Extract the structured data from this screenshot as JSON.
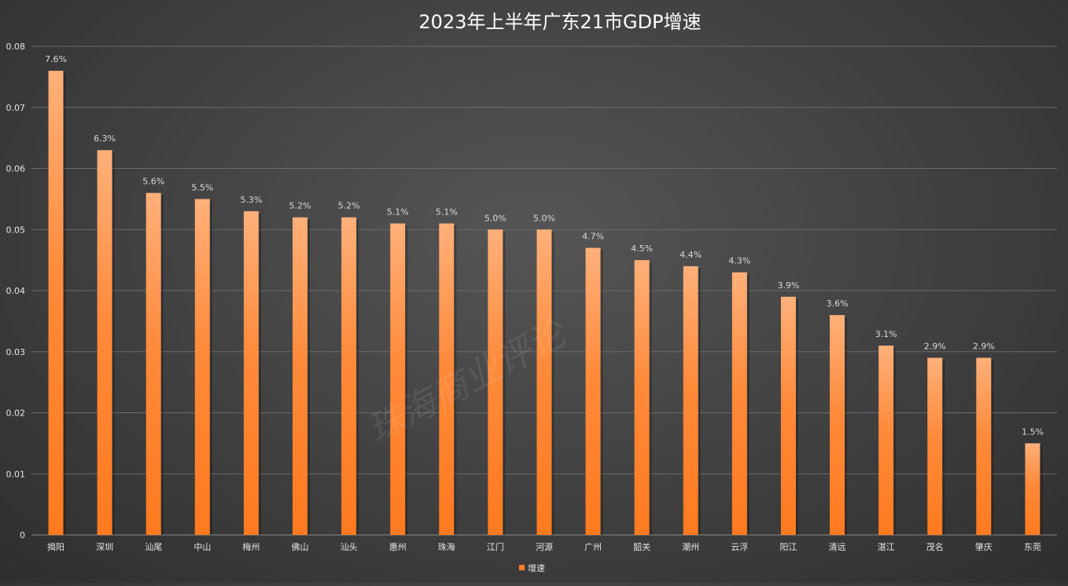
{
  "chart_data": {
    "type": "bar",
    "title": "2023年上半年广东21市GDP增速",
    "categories": [
      "揭阳",
      "深圳",
      "汕尾",
      "中山",
      "梅州",
      "佛山",
      "汕头",
      "惠州",
      "珠海",
      "江门",
      "河源",
      "广州",
      "韶关",
      "潮州",
      "云浮",
      "阳江",
      "清远",
      "湛江",
      "茂名",
      "肇庆",
      "东莞"
    ],
    "series": [
      {
        "name": "增速",
        "values": [
          0.076,
          0.063,
          0.056,
          0.055,
          0.053,
          0.052,
          0.052,
          0.051,
          0.051,
          0.05,
          0.05,
          0.047,
          0.045,
          0.044,
          0.043,
          0.039,
          0.036,
          0.031,
          0.029,
          0.029,
          0.015
        ],
        "data_labels": [
          "7.6%",
          "6.3%",
          "5.6%",
          "5.5%",
          "5.3%",
          "5.2%",
          "5.2%",
          "5.1%",
          "5.1%",
          "5.0%",
          "5.0%",
          "4.7%",
          "4.5%",
          "4.4%",
          "4.3%",
          "3.9%",
          "3.6%",
          "3.1%",
          "2.9%",
          "2.9%",
          "1.5%"
        ]
      }
    ],
    "yticks": [
      "0",
      "0.01",
      "0.02",
      "0.03",
      "0.04",
      "0.05",
      "0.06",
      "0.07",
      "0.08"
    ],
    "ylim": [
      0,
      0.08
    ],
    "grid": true,
    "legend_position": "bottom",
    "colors": {
      "bar": "#ff7f27",
      "bar_light": "#ffb07a",
      "grid": "#6a6a6a"
    }
  },
  "watermark": "珠海商业评论"
}
